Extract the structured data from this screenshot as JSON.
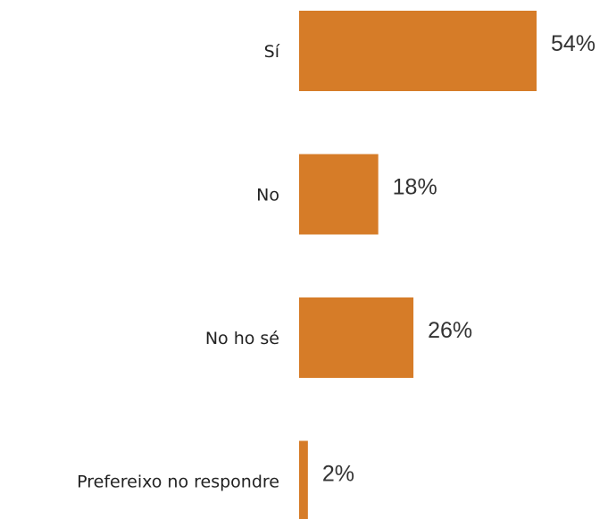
{
  "chart_data": {
    "type": "bar",
    "orientation": "horizontal",
    "categories": [
      "Sí",
      "No",
      "No ho sé",
      "Prefereixo no respondre"
    ],
    "values": [
      54,
      18,
      26,
      2
    ],
    "value_labels": [
      "54%",
      "18%",
      "26%",
      "2%"
    ],
    "unit": "%",
    "title": "",
    "xlabel": "",
    "ylabel": "",
    "xlim": [
      0,
      54
    ],
    "grid": false,
    "legend": "none",
    "bar_color": "#D67C28"
  }
}
